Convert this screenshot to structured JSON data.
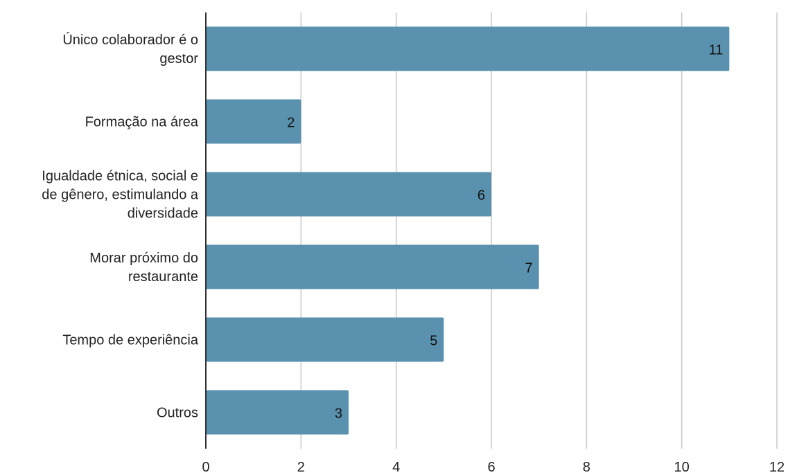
{
  "chart_data": {
    "type": "bar",
    "orientation": "horizontal",
    "categories": [
      [
        "Único colaborador é o",
        "gestor"
      ],
      [
        "Formação na área"
      ],
      [
        "Igualdade étnica, social e",
        "de gênero, estimulando a",
        "diversidade"
      ],
      [
        "Morar próximo do",
        "restaurante"
      ],
      [
        "Tempo de experiência"
      ],
      [
        "Outros"
      ]
    ],
    "values": [
      11,
      2,
      6,
      7,
      5,
      3
    ],
    "xlim": [
      0,
      12
    ],
    "xticks": [
      0,
      2,
      4,
      6,
      8,
      10,
      12
    ],
    "grid": "vertical",
    "legend": "none",
    "colors": {
      "bar": "#5a91ae",
      "grid": "#c8c8c8",
      "axis": "#333333"
    }
  }
}
